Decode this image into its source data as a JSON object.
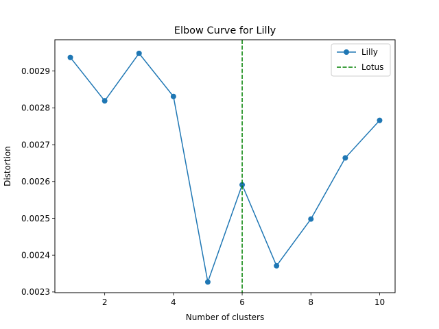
{
  "chart_data": {
    "type": "line",
    "title": "Elbow Curve for Lilly",
    "xlabel": "Number of clusters",
    "ylabel": "Distortion",
    "xlim": [
      0.55,
      10.45
    ],
    "ylim": [
      0.002298,
      0.002985
    ],
    "xticks": [
      2,
      4,
      6,
      8,
      10
    ],
    "xtick_labels": [
      "2",
      "4",
      "6",
      "8",
      "10"
    ],
    "yticks": [
      0.0023,
      0.0024,
      0.0025,
      0.0026,
      0.0027,
      0.0028,
      0.0029
    ],
    "ytick_labels": [
      "0.0023",
      "0.0024",
      "0.0025",
      "0.0026",
      "0.0027",
      "0.0028",
      "0.0029"
    ],
    "grid": false,
    "legend_position": "top-right",
    "series": [
      {
        "name": "Lilly",
        "color": "#1f77b4",
        "marker": "circle",
        "x": [
          1,
          2,
          3,
          4,
          5,
          6,
          7,
          8,
          9,
          10
        ],
        "y": [
          0.002937,
          0.002819,
          0.002948,
          0.002831,
          0.002327,
          0.002591,
          0.002371,
          0.002498,
          0.002664,
          0.002766
        ]
      }
    ],
    "reference_lines": [
      {
        "name": "Lotus",
        "orientation": "vertical",
        "x": 6,
        "color": "#008000",
        "style": "dashed"
      }
    ]
  }
}
